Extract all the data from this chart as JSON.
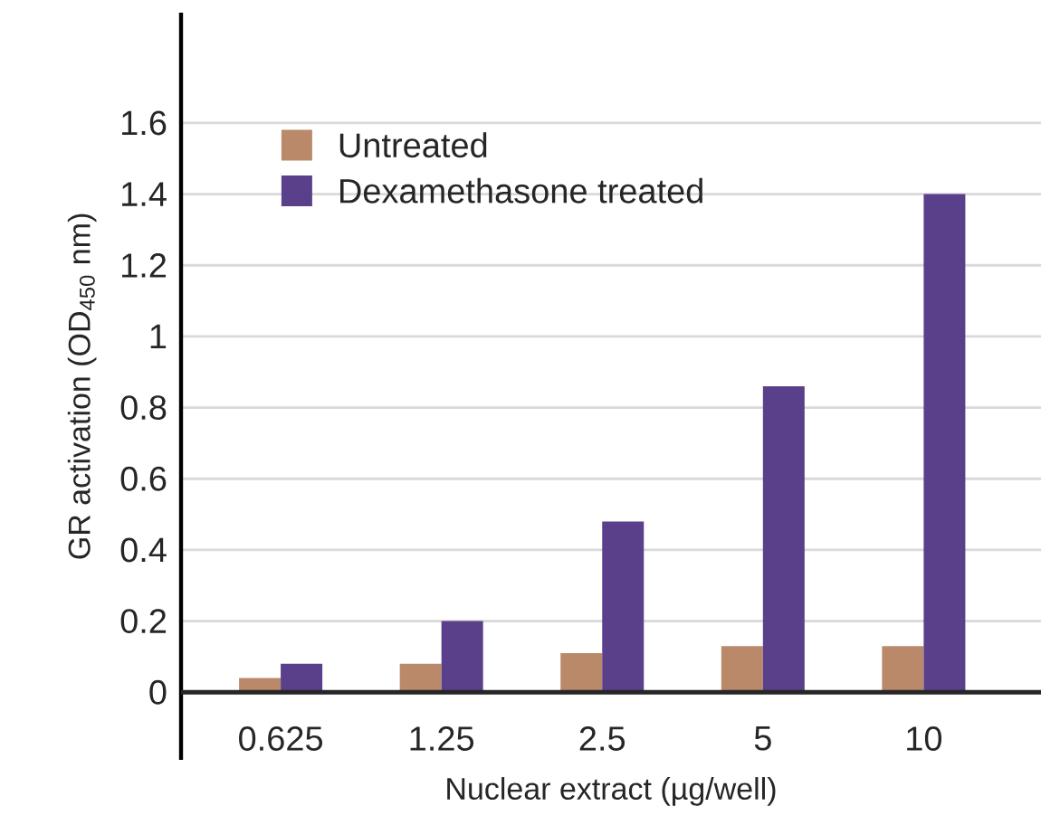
{
  "chart_data": {
    "type": "bar",
    "xlabel": "Nuclear extract (µg/well)",
    "ylabel": "GR activation (OD$_{450}$ nm)",
    "categories": [
      "0.625",
      "1.25",
      "2.5",
      "5",
      "10"
    ],
    "series": [
      {
        "name": "Untreated",
        "color": "#b9896a",
        "values": [
          0.04,
          0.08,
          0.11,
          0.13,
          0.13
        ]
      },
      {
        "name": "Dexamethasone treated",
        "color": "#5a3f8a",
        "values": [
          0.08,
          0.2,
          0.48,
          0.86,
          1.4
        ]
      }
    ],
    "ylim": [
      -0.19,
      1.91
    ],
    "yticks": [
      0,
      0.2,
      0.4,
      0.6,
      0.8,
      1,
      1.2,
      1.4,
      1.6
    ],
    "grid": "y",
    "legend": "top left"
  }
}
